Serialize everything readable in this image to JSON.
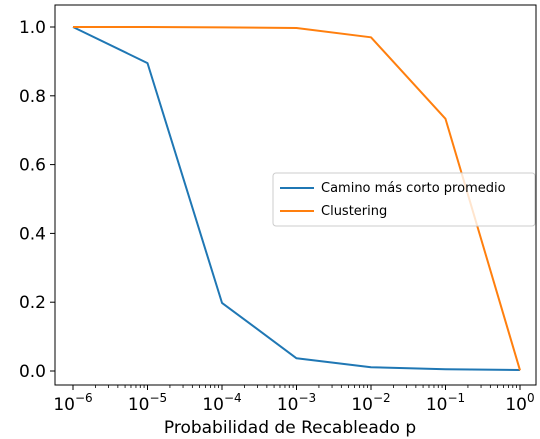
{
  "chart_data": {
    "type": "line",
    "xscale": "log",
    "x": [
      1e-06,
      1e-05,
      0.0001,
      0.001,
      0.01,
      0.1,
      1
    ],
    "xlim": [
      1e-06,
      1
    ],
    "ylim": [
      0,
      1
    ],
    "xlabel": "Probabilidad de Recableado p",
    "ylabel": "",
    "title": "",
    "grid": false,
    "legend_position": "center-right",
    "x_tick_labels": [
      {
        "base": "10",
        "exp": "−6"
      },
      {
        "base": "10",
        "exp": "−5"
      },
      {
        "base": "10",
        "exp": "−4"
      },
      {
        "base": "10",
        "exp": "−3"
      },
      {
        "base": "10",
        "exp": "−2"
      },
      {
        "base": "10",
        "exp": "−1"
      },
      {
        "base": "10",
        "exp": "0"
      }
    ],
    "y_ticks": [
      0.0,
      0.2,
      0.4,
      0.6,
      0.8,
      1.0
    ],
    "y_tick_labels": [
      "0.0",
      "0.2",
      "0.4",
      "0.6",
      "0.8",
      "1.0"
    ],
    "series": [
      {
        "name": "Camino más corto promedio",
        "color": "#1f77b4",
        "values": [
          1.0,
          0.895,
          0.198,
          0.037,
          0.011,
          0.005,
          0.003
        ]
      },
      {
        "name": "Clustering",
        "color": "#ff7f0e",
        "values": [
          1.0,
          1.0,
          0.999,
          0.997,
          0.97,
          0.733,
          0.002
        ]
      }
    ]
  }
}
